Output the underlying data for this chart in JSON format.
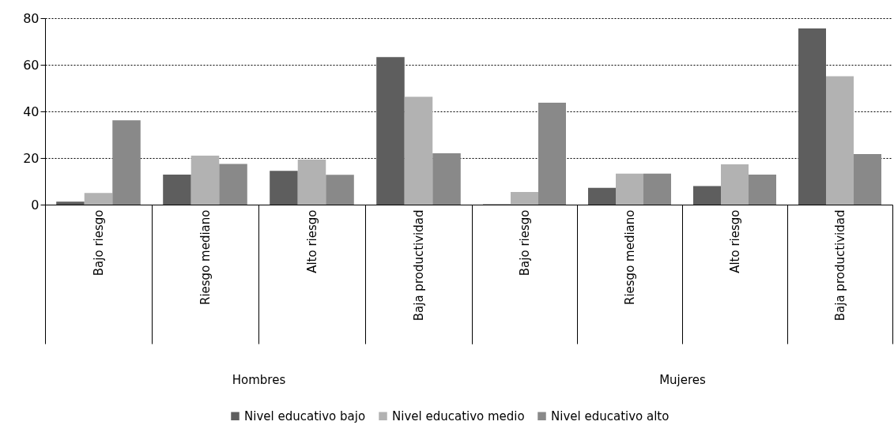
{
  "chart_data": [
    {
      "type": "bar",
      "xlabel": "Hombres",
      "categories": [
        "Bajo riesgo",
        "Riesgo mediano",
        "Alto riesgo",
        "Baja productividad"
      ],
      "series": [
        {
          "name": "Nivel educativo bajo",
          "color": "#5e5e5e",
          "values": [
            1.3,
            12.9,
            14.5,
            63.3
          ]
        },
        {
          "name": "Nivel educativo medio",
          "color": "#b2b2b2",
          "values": [
            5.0,
            21.0,
            19.3,
            46.3
          ]
        },
        {
          "name": "Nivel educativo alto",
          "color": "#898989",
          "values": [
            36.2,
            17.5,
            12.8,
            22.0
          ]
        }
      ],
      "ylim": [
        0,
        80
      ],
      "yticks": [
        0,
        20,
        40,
        60,
        80
      ],
      "grid": "y",
      "legend": "bottom"
    },
    {
      "type": "bar",
      "xlabel": "Mujeres",
      "categories": [
        "Bajo riesgo",
        "Riesgo mediano",
        "Alto riesgo",
        "Baja productividad"
      ],
      "series": [
        {
          "color": "#5e5e5e",
          "values": [
            0.2,
            7.2,
            8.0,
            75.6
          ]
        },
        {
          "color": "#b2b2b2",
          "values": [
            5.4,
            13.3,
            17.3,
            55.1
          ]
        },
        {
          "color": "#898989",
          "values": [
            43.7,
            13.3,
            12.9,
            21.7
          ]
        }
      ],
      "ylim": [
        0,
        80
      ],
      "yticks": [
        0,
        20,
        40,
        60,
        80
      ],
      "grid": "y",
      "tick_labels": "x"
    }
  ]
}
